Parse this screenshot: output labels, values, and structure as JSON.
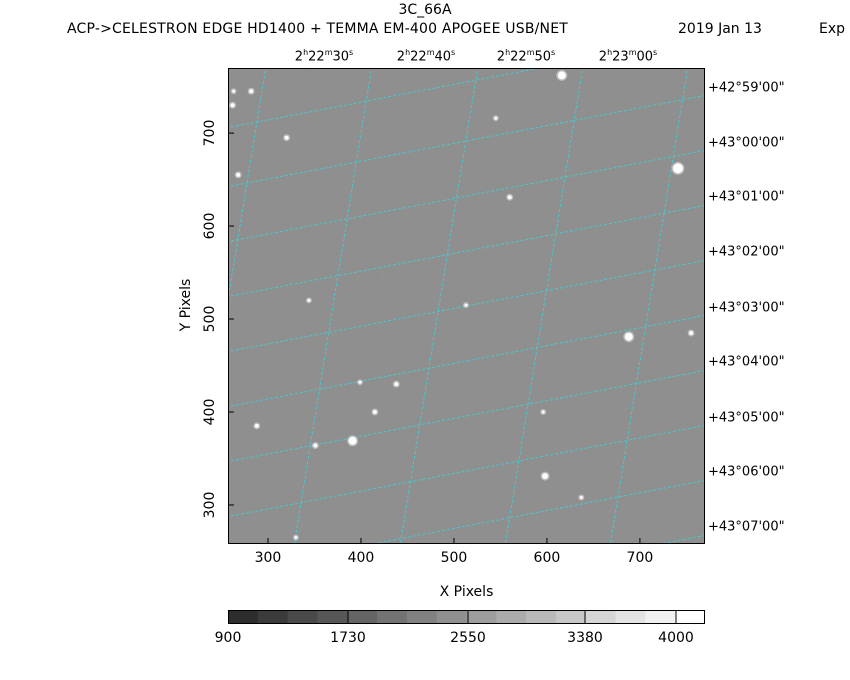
{
  "header": {
    "title": "3C_66A",
    "subtitle": "ACP->CELESTRON EDGE HD1400 + TEMMA EM-400 APOGEE USB/NET",
    "date": "2019 Jan 13",
    "exposure_fragment": "Exp"
  },
  "axes": {
    "xlabel": "X Pixels",
    "ylabel": "Y Pixels",
    "x_ticks": [
      "300",
      "400",
      "500",
      "600",
      "700"
    ],
    "y_ticks": [
      "300",
      "400",
      "500",
      "600",
      "700"
    ],
    "ra_labels": [
      "2h22m30s",
      "2h22m40s",
      "2h22m50s",
      "2h23m00s"
    ],
    "dec_labels": [
      "+42°59'00\"",
      "+43°00'00\"",
      "+43°01'00\"",
      "+43°02'00\"",
      "+43°03'00\"",
      "+43°04'00\"",
      "+43°05'00\"",
      "+43°06'00\"",
      "+43°07'00\""
    ]
  },
  "colorbar": {
    "tick_labels": [
      "900",
      "1730",
      "2550",
      "3380",
      "4000"
    ]
  },
  "colors": {
    "image_background": "#8f8f8f",
    "grid_line": "#3fd0d6",
    "colorbar_dark": "#2d2d2d",
    "colorbar_light": "#ffffff"
  },
  "chart_data": {
    "type": "scatter",
    "title": "3C_66A",
    "xlabel": "X Pixels",
    "ylabel": "Y Pixels",
    "xlim": [
      257,
      770
    ],
    "ylim": [
      258,
      770
    ],
    "grid": true,
    "stars": [
      {
        "x": 616,
        "y": 762,
        "r": 4
      },
      {
        "x": 741,
        "y": 662,
        "r": 5
      },
      {
        "x": 688,
        "y": 481,
        "r": 4
      },
      {
        "x": 391,
        "y": 369,
        "r": 4
      },
      {
        "x": 598,
        "y": 331,
        "r": 3
      },
      {
        "x": 560,
        "y": 631,
        "r": 2
      },
      {
        "x": 320,
        "y": 695,
        "r": 2
      },
      {
        "x": 268,
        "y": 655,
        "r": 2
      },
      {
        "x": 262,
        "y": 730,
        "r": 2
      },
      {
        "x": 282,
        "y": 745,
        "r": 2
      },
      {
        "x": 438,
        "y": 430,
        "r": 2
      },
      {
        "x": 415,
        "y": 400,
        "r": 2
      },
      {
        "x": 351,
        "y": 364,
        "r": 2
      },
      {
        "x": 288,
        "y": 385,
        "r": 2
      },
      {
        "x": 755,
        "y": 485,
        "r": 2
      },
      {
        "x": 596,
        "y": 400,
        "r": 1.5
      },
      {
        "x": 637,
        "y": 308,
        "r": 1.5
      },
      {
        "x": 545,
        "y": 716,
        "r": 1.5
      },
      {
        "x": 344,
        "y": 520,
        "r": 1.5
      },
      {
        "x": 399,
        "y": 432,
        "r": 1.5
      },
      {
        "x": 330,
        "y": 265,
        "r": 1.5
      },
      {
        "x": 513,
        "y": 515,
        "r": 1.5
      },
      {
        "x": 263,
        "y": 745,
        "r": 1.5
      }
    ]
  }
}
